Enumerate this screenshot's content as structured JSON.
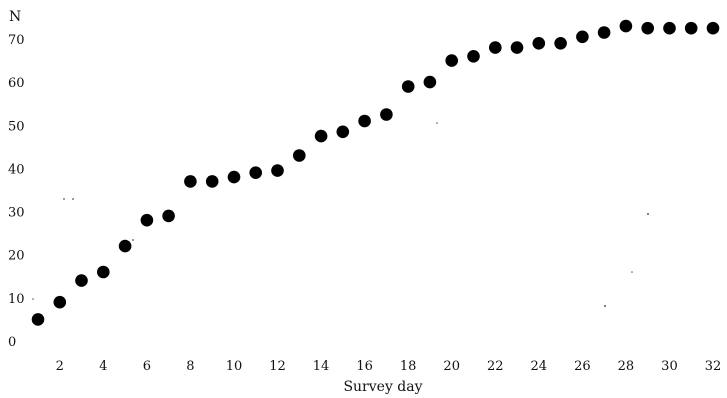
{
  "chart_data": {
    "type": "scatter",
    "title": "",
    "xlabel": "Survey day",
    "ylabel": "N",
    "xlim": [
      1,
      32
    ],
    "ylim": [
      0,
      70
    ],
    "grid": false,
    "x_ticks": [
      2,
      4,
      6,
      8,
      10,
      12,
      14,
      16,
      18,
      20,
      22,
      24,
      26,
      28,
      30,
      32
    ],
    "y_ticks": [
      0,
      10,
      20,
      30,
      40,
      50,
      60,
      70
    ],
    "marker_color": "#000000",
    "points": [
      {
        "x": 1,
        "y": 5
      },
      {
        "x": 2,
        "y": 9
      },
      {
        "x": 3,
        "y": 14
      },
      {
        "x": 4,
        "y": 16
      },
      {
        "x": 5,
        "y": 22
      },
      {
        "x": 6,
        "y": 28
      },
      {
        "x": 7,
        "y": 29
      },
      {
        "x": 8,
        "y": 37
      },
      {
        "x": 9,
        "y": 37
      },
      {
        "x": 10,
        "y": 38
      },
      {
        "x": 11,
        "y": 39
      },
      {
        "x": 12,
        "y": 39.5
      },
      {
        "x": 13,
        "y": 43
      },
      {
        "x": 14,
        "y": 47.5
      },
      {
        "x": 15,
        "y": 48.5
      },
      {
        "x": 16,
        "y": 51
      },
      {
        "x": 17,
        "y": 52.5
      },
      {
        "x": 18,
        "y": 59
      },
      {
        "x": 19,
        "y": 60
      },
      {
        "x": 20,
        "y": 65
      },
      {
        "x": 21,
        "y": 66
      },
      {
        "x": 22,
        "y": 68
      },
      {
        "x": 23,
        "y": 68
      },
      {
        "x": 24,
        "y": 69
      },
      {
        "x": 25,
        "y": 69
      },
      {
        "x": 26,
        "y": 70.5
      },
      {
        "x": 27,
        "y": 71.5
      },
      {
        "x": 28,
        "y": 73
      },
      {
        "x": 29,
        "y": 72.5
      },
      {
        "x": 30,
        "y": 72.5
      },
      {
        "x": 31,
        "y": 72.5
      },
      {
        "x": 32,
        "y": 72.5
      }
    ]
  }
}
